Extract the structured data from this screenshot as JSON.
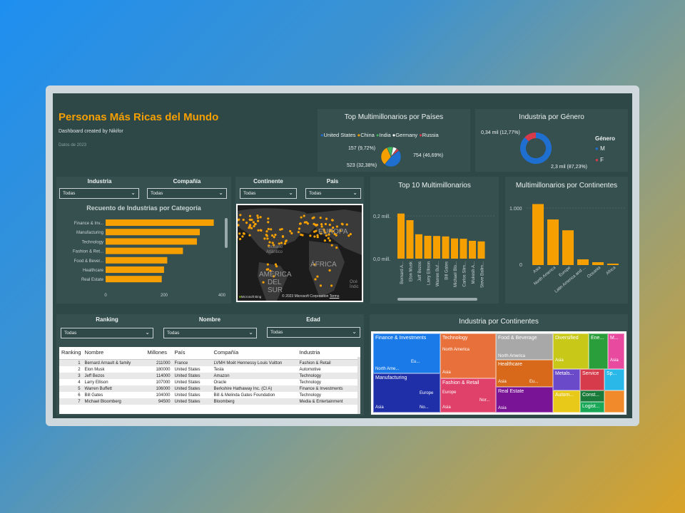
{
  "header": {
    "title": "Personas Más Ricas del Mundo",
    "subtitle": "Dashboard created by Nikifor",
    "date": "Datos de 2023"
  },
  "countries_panel": {
    "title": "Top Multimillonarios por Países",
    "legend": [
      {
        "label": "United States",
        "color": "#1f6fd0"
      },
      {
        "label": "China",
        "color": "#f5a000"
      },
      {
        "label": "India",
        "color": "#3db35a"
      },
      {
        "label": "Germany",
        "color": "#ffffff"
      },
      {
        "label": "Russia",
        "color": "#d63b4b"
      }
    ],
    "labels": {
      "us": "754 (46,69%)",
      "china": "523 (32,38%)",
      "india": "157 (9,72%)"
    },
    "values": [
      754,
      523,
      157,
      110,
      70
    ]
  },
  "gender_panel": {
    "title": "Industria por Género",
    "label_f": "0,34 mil (12,77%)",
    "label_m": "2,3 mil (87,23%)",
    "legend_title": "Género",
    "legend": [
      {
        "label": "M",
        "color": "#1f6fd0"
      },
      {
        "label": "F",
        "color": "#d63b4b"
      }
    ],
    "values": [
      87.23,
      12.77
    ]
  },
  "filters_left": {
    "industria_label": "Industria",
    "industria_value": "Todas",
    "compania_label": "Compañía",
    "compania_value": "Todas"
  },
  "filters_map": {
    "continente_label": "Continente",
    "continente_value": "Todas",
    "pais_label": "País",
    "pais_value": "Todas"
  },
  "industry_chart": {
    "title": "Recuento de Industrias por Categoría",
    "ticks": [
      "0",
      "200",
      "400"
    ]
  },
  "map": {
    "labels": {
      "europa": "EUROPA",
      "oceano": "Océano",
      "atlantico": "Atlántico",
      "africa": "ÁFRICA",
      "america": "AMÉRICA",
      "del": "DEL",
      "sur": "SUR",
      "oceano2": "Océ",
      "indico": "Índic"
    },
    "copyright": "© 2023 Microsoft Corporation",
    "terms": "Terms",
    "brand": "Microsoft Bing"
  },
  "top10_panel": {
    "title": "Top 10 Multimillonarios",
    "ytick_top": "0,2 mill.",
    "ytick_bottom": "0,0 mill."
  },
  "continents_panel": {
    "title": "Multimillonarios por Continentes",
    "ytick_top": "1.000",
    "ytick_bottom": "0"
  },
  "filters_table": {
    "ranking_label": "Ranking",
    "ranking_value": "Todas",
    "nombre_label": "Nombre",
    "nombre_value": "Todas",
    "edad_label": "Edad",
    "edad_value": "Todas"
  },
  "table": {
    "headers": [
      "Ranking",
      "Nombre",
      "Millones",
      "País",
      "Compañía",
      "Industria"
    ],
    "rows": [
      [
        "1",
        "Bernard Arnault & family",
        "211000",
        "France",
        "LVMH Moët Hennessy Louis Vuitton",
        "Fashion & Retail"
      ],
      [
        "2",
        "Elon Musk",
        "180000",
        "United States",
        "Tesla",
        "Automotive"
      ],
      [
        "3",
        "Jeff Bezos",
        "114000",
        "United States",
        "Amazon",
        "Technology"
      ],
      [
        "4",
        "Larry Ellison",
        "107000",
        "United States",
        "Oracle",
        "Technology"
      ],
      [
        "5",
        "Warren Buffett",
        "106000",
        "United States",
        "Berkshire Hathaway Inc. (Cl A)",
        "Finance & Investments"
      ],
      [
        "6",
        "Bill Gates",
        "104000",
        "United States",
        "Bill & Melinda Gates Foundation",
        "Technology"
      ],
      [
        "7",
        "Michael Bloomberg",
        "94500",
        "United States",
        "Bloomberg",
        "Media & Entertainment"
      ]
    ]
  },
  "treemap_panel": {
    "title": "Industria por Continentes",
    "cells": {
      "finance": "Finance & Investments",
      "finance_na": "North Ame...",
      "finance_eu": "Eu...",
      "manufacturing": "Manufacturing",
      "manu_asia": "Asia",
      "manu_eu": "Europe",
      "manu_no": "No...",
      "technology": "Technology",
      "tech_na": "North America",
      "tech_asia": "Asia",
      "fashion": "Fashion & Retail",
      "fashion_eu": "Europe",
      "fashion_asia": "Asia",
      "fashion_nor": "Nor...",
      "food": "Food & Beverage",
      "food_na": "North America",
      "healthcare": "Healthcare",
      "health_asia": "Asia",
      "health_eu": "Eu...",
      "realestate": "Real Estate",
      "re_asia": "Asia",
      "diversified": "Diversified",
      "div_asia": "Asia",
      "energy": "Ene...",
      "energy_m": "M...",
      "metals": "Metals...",
      "service": "Service",
      "automotive": "Autom...",
      "construction": "Const...",
      "logistics": "Logist...",
      "sp": "Sp...",
      "asia_small": "Asia"
    }
  },
  "chart_data": [
    {
      "type": "bar",
      "title": "Recuento de Industrias por Categoría",
      "orientation": "horizontal",
      "categories": [
        "Finance & Inv...",
        "Manufacturing",
        "Technology",
        "Fashion & Ret...",
        "Food & Bever...",
        "Healthcare",
        "Real Estate"
      ],
      "values": [
        372,
        324,
        314,
        266,
        212,
        201,
        193
      ],
      "xlim": [
        0,
        420
      ],
      "color": "#f5a000"
    },
    {
      "type": "bar",
      "title": "Top 10 Multimillonarios",
      "categories": [
        "Bernard A...",
        "Elon Musk",
        "Jeff Bezos",
        "Larry Ellison",
        "Warren Buf...",
        "Bill Gates",
        "Michael Blo...",
        "Carlos Slim...",
        "Mukesh A...",
        "Steve Ballm..."
      ],
      "values": [
        211000,
        180000,
        114000,
        107000,
        106000,
        104000,
        94500,
        93000,
        83400,
        80700
      ],
      "ylim": [
        0,
        230000
      ],
      "color": "#f5a000"
    },
    {
      "type": "bar",
      "title": "Multimillonarios por Continentes",
      "categories": [
        "Asia",
        "North America",
        "Europe",
        "Latin America and ...",
        "Oceania",
        "Africa"
      ],
      "values": [
        1070,
        800,
        610,
        100,
        50,
        25
      ],
      "ylim": [
        0,
        1150
      ],
      "color": "#f5a000"
    }
  ]
}
